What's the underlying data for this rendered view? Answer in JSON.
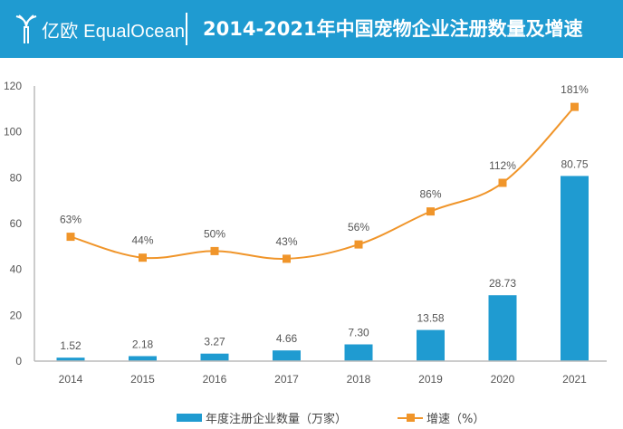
{
  "header": {
    "logo_text": "亿欧 EqualOcean",
    "title": "2014-2021年中国宠物企业注册数量及增速"
  },
  "chart_data": {
    "type": "bar+line",
    "title": "2014-2021年中国宠物企业注册数量及增速",
    "categories": [
      "2014",
      "2015",
      "2016",
      "2017",
      "2018",
      "2019",
      "2020",
      "2021"
    ],
    "series": [
      {
        "name": "年度注册企业数量（万家）",
        "type": "bar",
        "color": "#1f9bd1",
        "values": [
          1.52,
          2.18,
          3.27,
          4.66,
          7.3,
          13.58,
          28.73,
          80.75
        ],
        "labels": [
          "1.52",
          "2.18",
          "3.27",
          "4.66",
          "7.30",
          "13.58",
          "28.73",
          "80.75"
        ]
      },
      {
        "name": "增速（%）",
        "type": "line",
        "color": "#f0952a",
        "axis": "secondary",
        "values": [
          63,
          44,
          50,
          43,
          56,
          86,
          112,
          181
        ],
        "labels": [
          "63%",
          "44%",
          "50%",
          "43%",
          "56%",
          "86%",
          "112%",
          "181%"
        ]
      }
    ],
    "ylim": [
      0,
      120
    ],
    "yticks": [
      "0",
      "20",
      "40",
      "60",
      "80",
      "100",
      "120"
    ],
    "y2lim": [
      -50,
      200
    ],
    "legend": "bottom",
    "grid": false
  }
}
